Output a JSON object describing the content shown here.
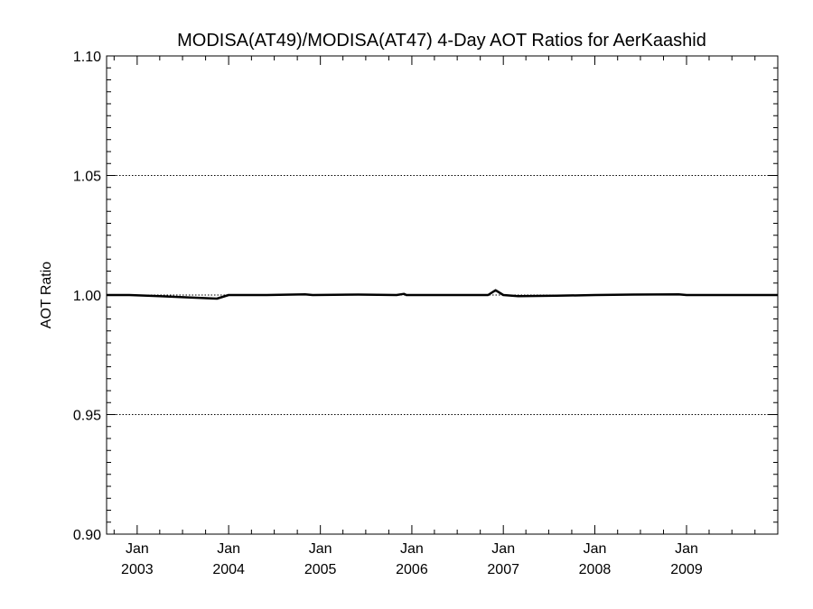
{
  "chart_data": {
    "type": "line",
    "title": "MODISA(AT49)/MODISA(AT47) 4-Day AOT Ratios for AerKaashid",
    "ylabel": "AOT Ratio",
    "xlabel": "",
    "ylim": [
      0.9,
      1.1
    ],
    "xlim": [
      "2002-09-01",
      "2009-12-31"
    ],
    "y_ticks": [
      "0.90",
      "0.95",
      "1.00",
      "1.05",
      "1.10"
    ],
    "x_ticks": [
      {
        "date": "2003-01-01",
        "month": "Jan",
        "year": "2003"
      },
      {
        "date": "2004-01-01",
        "month": "Jan",
        "year": "2004"
      },
      {
        "date": "2005-01-01",
        "month": "Jan",
        "year": "2005"
      },
      {
        "date": "2006-01-01",
        "month": "Jan",
        "year": "2006"
      },
      {
        "date": "2007-01-01",
        "month": "Jan",
        "year": "2007"
      },
      {
        "date": "2008-01-01",
        "month": "Jan",
        "year": "2008"
      },
      {
        "date": "2009-01-01",
        "month": "Jan",
        "year": "2009"
      }
    ],
    "grid_y": [
      0.95,
      1.0,
      1.05
    ],
    "grid_style": "dotted",
    "series": [
      {
        "color": "#000000",
        "x": [
          "2002-09-01",
          "2002-12-01",
          "2003-04-01",
          "2003-08-01",
          "2003-11-15",
          "2004-01-01",
          "2004-06-01",
          "2004-11-01",
          "2004-12-01",
          "2005-06-01",
          "2005-11-01",
          "2005-12-01",
          "2005-12-10",
          "2006-01-01",
          "2006-06-01",
          "2006-11-01",
          "2006-12-01",
          "2007-01-01",
          "2007-03-01",
          "2007-08-01",
          "2008-01-01",
          "2008-06-01",
          "2008-12-01",
          "2009-01-01",
          "2009-06-01",
          "2009-11-01",
          "2009-12-31"
        ],
        "y": [
          1.0,
          1.0,
          0.9995,
          0.999,
          0.9985,
          1.0,
          1.0,
          1.0003,
          1.0,
          1.0002,
          1.0,
          1.0005,
          1.0,
          1.0,
          1.0,
          1.0,
          1.002,
          1.0,
          0.9995,
          0.9997,
          1.0,
          1.0002,
          1.0003,
          1.0,
          1.0,
          1.0,
          1.0
        ]
      }
    ]
  }
}
